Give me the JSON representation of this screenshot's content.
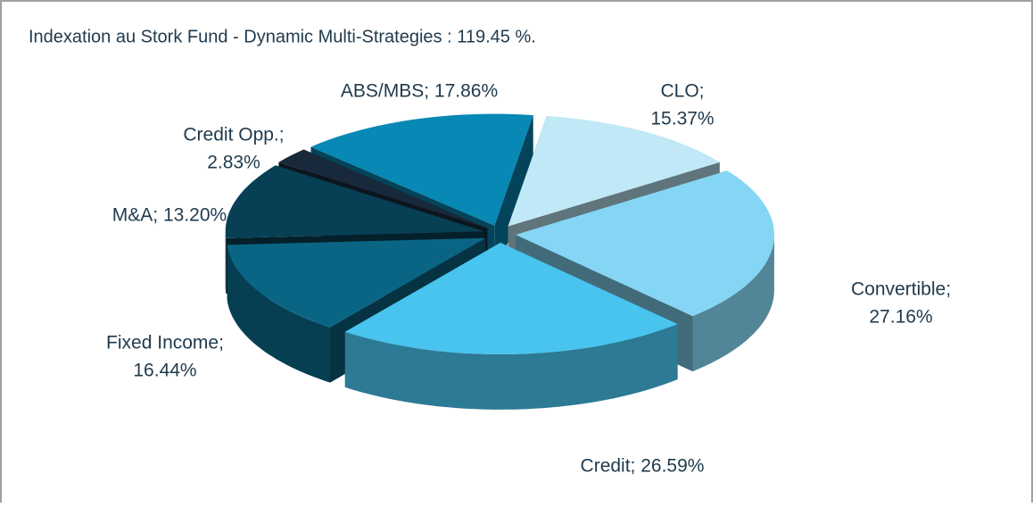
{
  "chart_data": {
    "type": "pie3d",
    "title": "Indexation au Stork Fund - Dynamic Multi-Strategies : 119.45 %.",
    "values": [
      15.37,
      27.16,
      26.59,
      16.44,
      13.2,
      2.83,
      17.86
    ],
    "value_labels": [
      [
        "CLO;",
        "15.37%"
      ],
      [
        "Convertible;",
        "27.16%"
      ],
      [
        "Credit; 26.59%"
      ],
      [
        "Fixed Income;",
        "16.44%"
      ],
      [
        "M&A; 13.20%"
      ],
      [
        "Credit Opp.;",
        "2.83%"
      ],
      [
        "ABS/MBS; 17.86%"
      ]
    ],
    "colors": [
      "#c0e8f6",
      "#84d6f4",
      "#48c4ee",
      "#0a6585",
      "#073f54",
      "#17293a",
      "#0888b4"
    ]
  }
}
